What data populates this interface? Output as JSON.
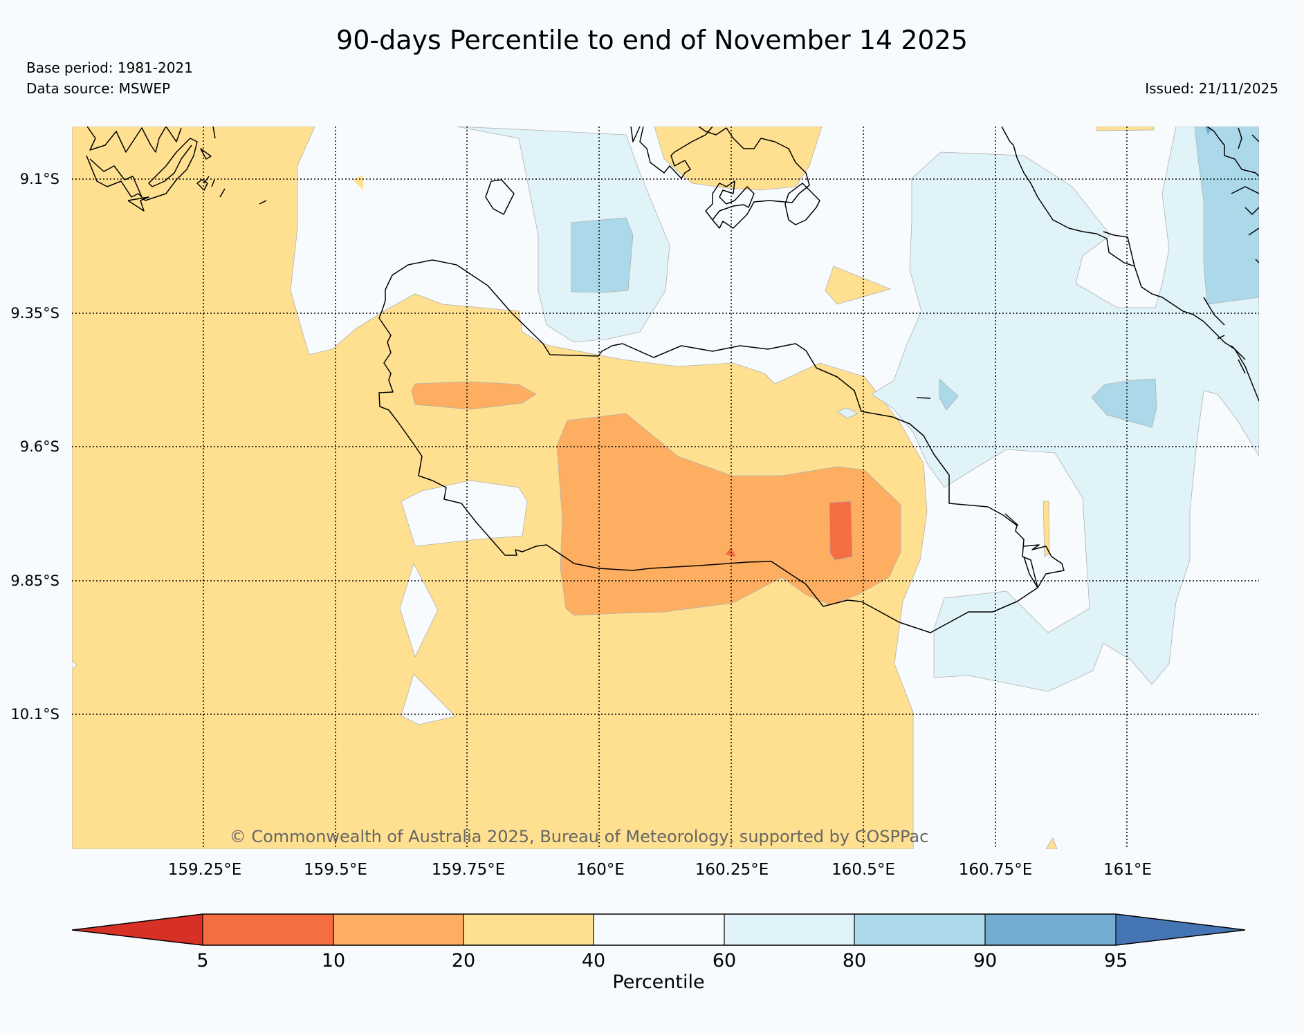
{
  "title": "90-days Percentile to end of November 14 2025",
  "base_period": "Base period: 1981-2021",
  "data_source": "Data source: MSWEP",
  "issued": "Issued: 21/11/2025",
  "copyright": "© Commonwealth of Australia 2025, Bureau of Meteorology, supported by COSPPac",
  "map": {
    "lat_labels": [
      "9.1°S",
      "9.35°S",
      "9.6°S",
      "9.85°S",
      "10.1°S"
    ],
    "lon_labels": [
      "159.25°E",
      "159.5°E",
      "159.75°E",
      "160°E",
      "160.25°E",
      "160.5°E",
      "160.75°E",
      "161°E"
    ]
  },
  "colorbar": {
    "title": "Percentile",
    "tick_labels": [
      "5",
      "10",
      "20",
      "40",
      "60",
      "80",
      "90",
      "95"
    ],
    "colors": {
      "lt5": "#d73027",
      "p5_10": "#f46d43",
      "p10_20": "#fdae61",
      "p20_40": "#fee090",
      "p40_60": "#f8fbfd",
      "p60_80": "#e0f3f8",
      "p80_90": "#abd9e9",
      "p90_95": "#74add1",
      "gt95": "#4575b4"
    }
  }
}
